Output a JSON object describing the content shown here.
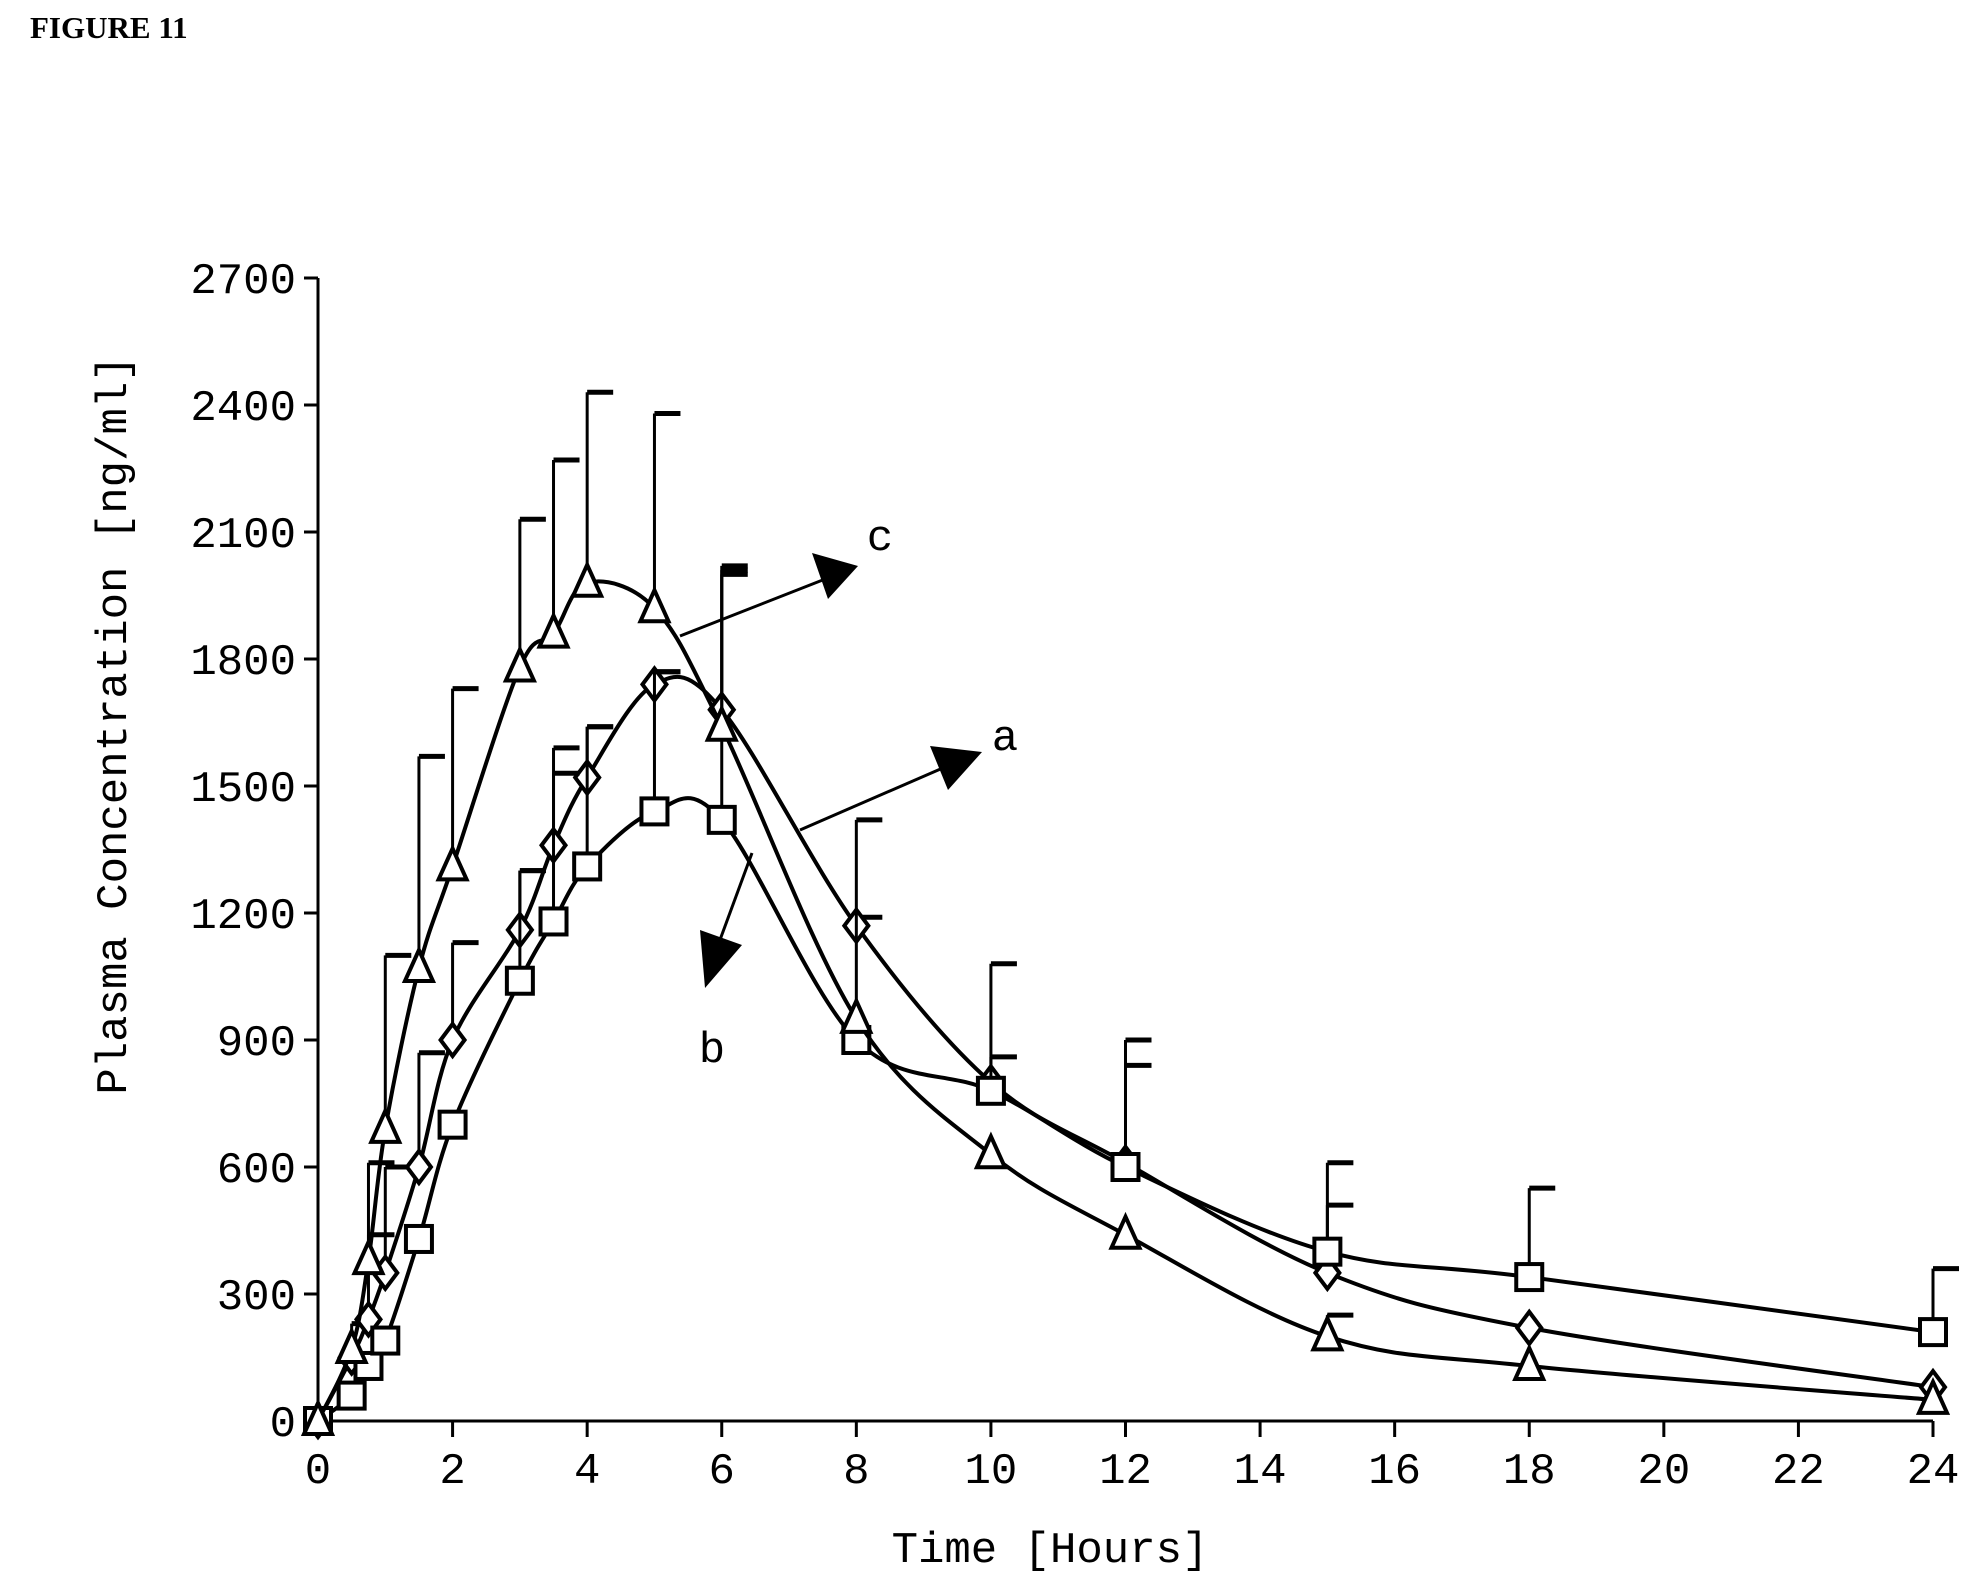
{
  "figure": {
    "title": "FIGURE 11"
  },
  "chart_data": {
    "type": "line",
    "xlabel": "Time [Hours]",
    "ylabel": "Plasma Concentration [ng/ml]",
    "xlim": [
      0,
      24
    ],
    "ylim": [
      0,
      2700
    ],
    "xticks": [
      0,
      2,
      4,
      6,
      8,
      10,
      12,
      14,
      16,
      18,
      20,
      22,
      24
    ],
    "yticks": [
      0,
      300,
      600,
      900,
      1200,
      1500,
      1800,
      2100,
      2400,
      2700
    ],
    "grid": false,
    "legend": "none",
    "annotations": [
      "c",
      "a",
      "b"
    ],
    "series": [
      {
        "marker": "diamond",
        "x": [
          0,
          0.5,
          0.75,
          1,
          1.5,
          2,
          3,
          3.5,
          4,
          5,
          6,
          8,
          10,
          12,
          15,
          18,
          24
        ],
        "y": [
          0,
          150,
          240,
          350,
          600,
          900,
          1160,
          1360,
          1520,
          1740,
          1680,
          1170,
          800,
          610,
          350,
          220,
          80
        ],
        "err": [
          0,
          80,
          200,
          250,
          270,
          230,
          140,
          230,
          120,
          30,
          330,
          20,
          60,
          230,
          160,
          0,
          0
        ]
      },
      {
        "marker": "square",
        "x": [
          0,
          0.5,
          0.75,
          1,
          1.5,
          2,
          3,
          3.5,
          4,
          5,
          6,
          8,
          10,
          12,
          15,
          18,
          24
        ],
        "y": [
          0,
          60,
          130,
          190,
          430,
          700,
          1040,
          1180,
          1310,
          1440,
          1420,
          900,
          780,
          600,
          400,
          340,
          210
        ],
        "err": [
          0,
          0,
          0,
          0,
          0,
          0,
          260,
          350,
          330,
          330,
          600,
          520,
          300,
          300,
          210,
          210,
          150
        ]
      },
      {
        "marker": "triangle",
        "x": [
          0,
          0.5,
          0.75,
          1,
          1.5,
          2,
          3,
          3.5,
          4,
          5,
          6,
          8,
          10,
          12,
          15,
          18,
          24
        ],
        "y": [
          0,
          170,
          380,
          690,
          1070,
          1310,
          1780,
          1860,
          1980,
          1920,
          1640,
          950,
          630,
          440,
          200,
          130,
          50
        ],
        "err": [
          0,
          0,
          230,
          410,
          500,
          420,
          350,
          410,
          450,
          460,
          360,
          0,
          0,
          0,
          50,
          0,
          0
        ]
      }
    ]
  }
}
